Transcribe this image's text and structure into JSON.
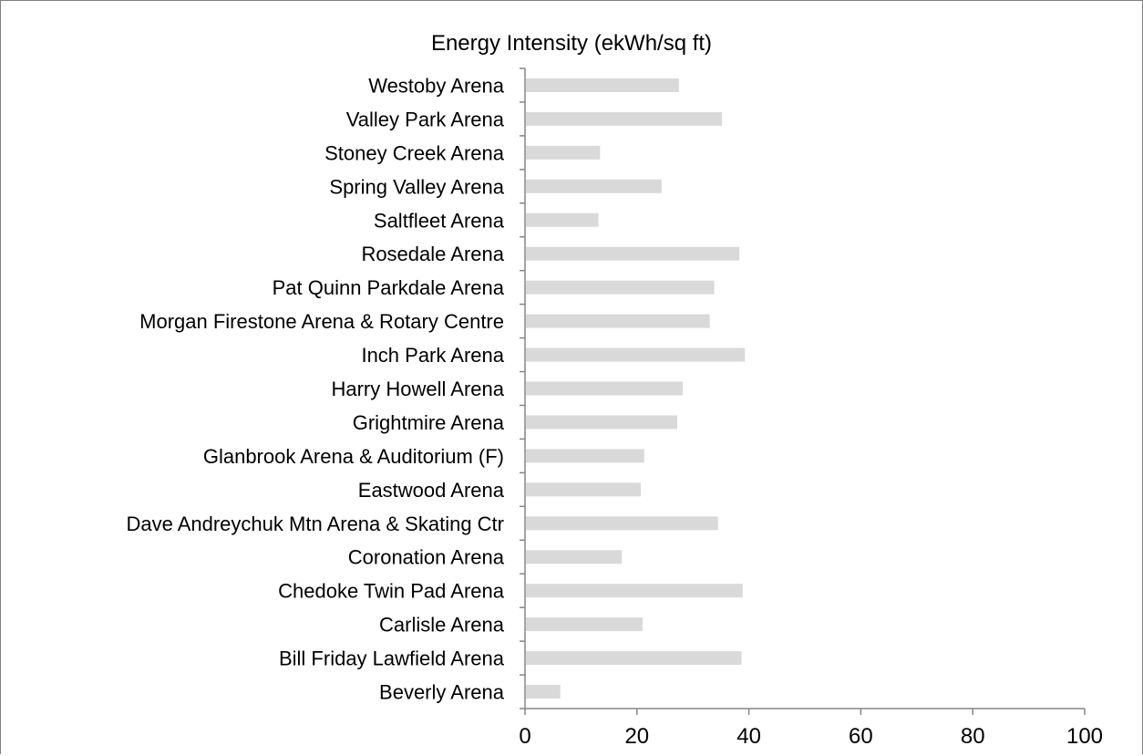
{
  "chart_data": {
    "type": "bar",
    "orientation": "horizontal",
    "title": "Energy Intensity (ekWh/sq ft)",
    "xlabel": "",
    "ylabel": "",
    "xlim": [
      0,
      100
    ],
    "x_ticks": [
      "0",
      "20",
      "40",
      "60",
      "80",
      "100"
    ],
    "grid": false,
    "legend": "none",
    "bar_color": "#d9d9d9",
    "categories": [
      "Westoby Arena",
      "Valley Park Arena",
      "Stoney Creek Arena",
      "Spring Valley Arena",
      "Saltfleet Arena",
      "Rosedale Arena",
      "Pat Quinn Parkdale Arena",
      "Morgan Firestone Arena & Rotary Centre",
      "Inch Park Arena",
      "Harry Howell Arena",
      "Grightmire Arena",
      "Glanbrook Arena & Auditorium (F)",
      "Eastwood Arena",
      "Dave Andreychuk Mtn Arena & Skating Ctr",
      "Coronation Arena",
      "Chedoke Twin Pad Arena",
      "Carlisle Arena",
      "Bill Friday Lawfield Arena",
      "Beverly Arena"
    ],
    "values": [
      27.5,
      35.2,
      13.4,
      24.4,
      13.1,
      38.3,
      33.8,
      33.0,
      39.3,
      28.2,
      27.2,
      21.3,
      20.7,
      34.5,
      17.3,
      38.9,
      21.0,
      38.7,
      6.3
    ]
  }
}
